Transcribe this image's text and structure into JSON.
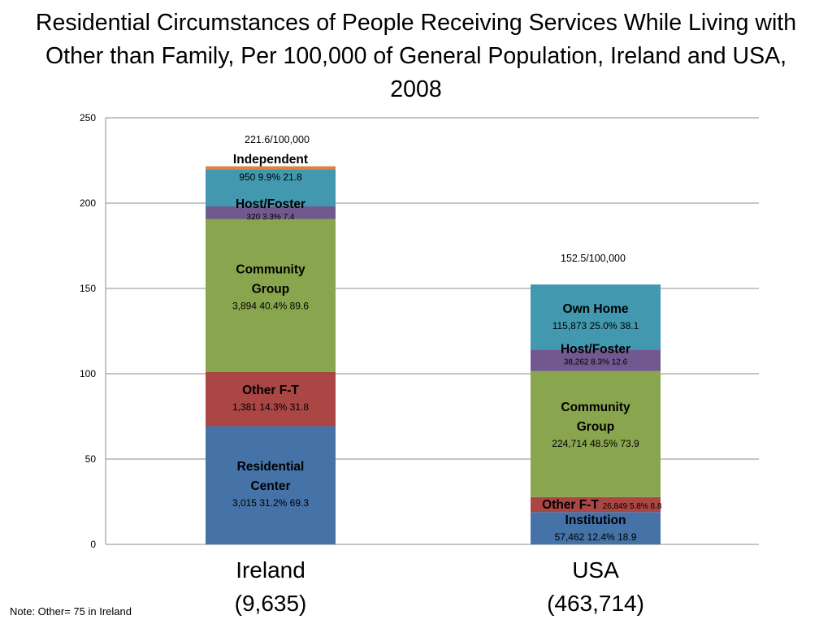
{
  "title": "Residential Circumstances of People Receiving Services While Living with Other than Family, Per 100,000 of General Population, Ireland and USA, 2008",
  "note": "Note: Other= 75 in Ireland",
  "colors": {
    "residential_center": "#4572a7",
    "institution": "#4572a7",
    "other_ft": "#aa4643",
    "community_group": "#89a54e",
    "host_foster": "#71588f",
    "independent": "#4198af",
    "own_home": "#4198af",
    "other": "#db843d"
  },
  "chart_data": {
    "type": "bar",
    "stacked": true,
    "ylim": [
      0,
      250
    ],
    "yticks": [
      "0",
      "50",
      "100",
      "150",
      "200",
      "250"
    ],
    "grid": true,
    "categories": [
      {
        "name": "Ireland",
        "subtitle": "(9,635)",
        "total_label": "221.6/100,000"
      },
      {
        "name": "USA",
        "subtitle": "(463,714)",
        "total_label": "152.5/100,000"
      }
    ],
    "stacks": [
      {
        "category": "Ireland",
        "segments": [
          {
            "key": "residential_center",
            "label": [
              "Residential",
              "Center"
            ],
            "stats": "3,015  31.2%   69.3",
            "value": 69.3
          },
          {
            "key": "other_ft",
            "label": [
              "Other F-T"
            ],
            "stats": "1,381   14.3%  31.8",
            "value": 31.8
          },
          {
            "key": "community_group",
            "label": [
              "Community",
              "Group"
            ],
            "stats": "3,894   40.4%   89.6",
            "value": 89.6
          },
          {
            "key": "host_foster",
            "label": [
              "Host/Foster"
            ],
            "stats": "320   3.3%   7.4",
            "value": 7.4
          },
          {
            "key": "independent",
            "label": [
              "Independent"
            ],
            "stats": "950    9.9%   21.8",
            "value": 21.8
          },
          {
            "key": "other",
            "label": [],
            "stats": "",
            "value": 1.7
          }
        ]
      },
      {
        "category": "USA",
        "segments": [
          {
            "key": "institution",
            "label": [
              "Institution"
            ],
            "stats": "57,462  12.4%  18.9",
            "value": 18.9
          },
          {
            "key": "other_ft",
            "label": [
              "Other F-T"
            ],
            "stats": "26,849  5.8%  8.8",
            "value": 8.8
          },
          {
            "key": "community_group",
            "label": [
              "Community",
              "Group"
            ],
            "stats": "224,714  48.5%  73.9",
            "value": 73.9
          },
          {
            "key": "host_foster",
            "label": [
              "Host/Foster"
            ],
            "stats": "38,262  8.3%  12.6",
            "value": 12.6
          },
          {
            "key": "own_home",
            "label": [
              "Own Home"
            ],
            "stats": "115,873  25.0%  38.1",
            "value": 38.1
          }
        ]
      }
    ]
  }
}
